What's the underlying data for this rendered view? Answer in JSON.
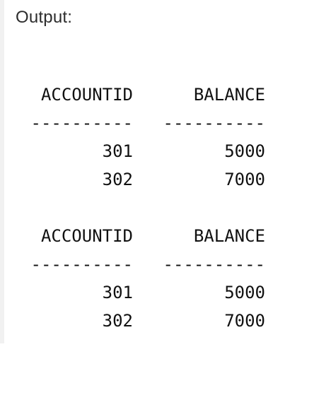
{
  "output_label": "Output:",
  "results": [
    {
      "headers": [
        "ACCOUNTID",
        "BALANCE"
      ],
      "separators": [
        "----------",
        "----------"
      ],
      "rows": [
        [
          "301",
          "5000"
        ],
        [
          "302",
          "7000"
        ]
      ]
    },
    {
      "headers": [
        "ACCOUNTID",
        "BALANCE"
      ],
      "separators": [
        "----------",
        "----------"
      ],
      "rows": [
        [
          "301",
          "5000"
        ],
        [
          "302",
          "7000"
        ]
      ]
    }
  ]
}
